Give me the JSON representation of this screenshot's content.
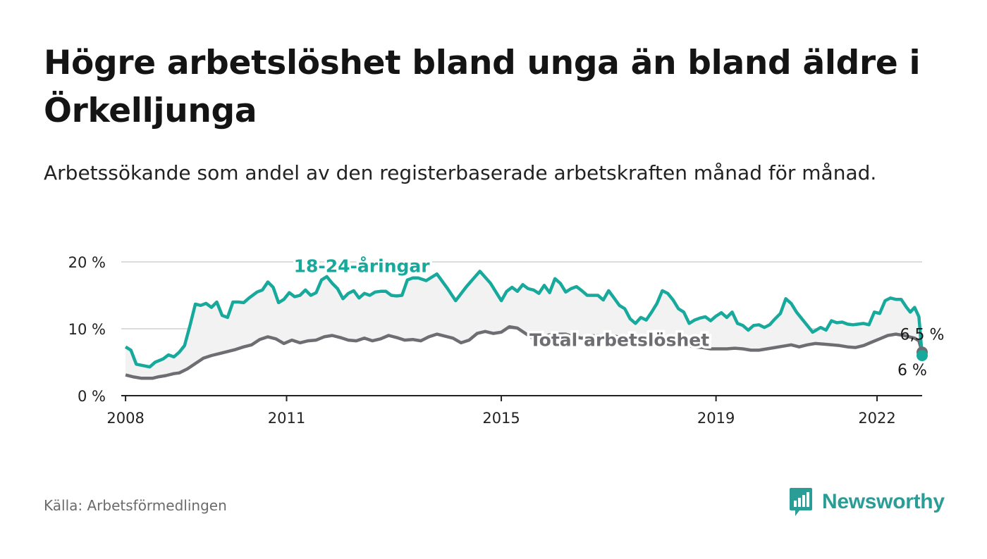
{
  "header": {
    "title": "Högre arbetslöshet bland unga än bland äldre i Örkelljunga",
    "subtitle": "Arbetssökande som andel av den registerbaserade arbetskraften månad för månad."
  },
  "footer": {
    "source": "Källa: Arbetsförmedlingen",
    "brand": "Newsworthy"
  },
  "colors": {
    "youth": "#17a99c",
    "total": "#6e6d72",
    "fill": "#f2f2f2",
    "grid": "#dcdcdc",
    "axis": "#222222",
    "brand": "#2a9d96"
  },
  "chart_data": {
    "type": "line",
    "title": "Högre arbetslöshet bland unga än bland äldre i Örkelljunga",
    "xlabel": "",
    "ylabel": "",
    "xlim": [
      2007.92,
      2022.84
    ],
    "ylim": [
      0,
      20
    ],
    "y_ticks": [
      0,
      10,
      20
    ],
    "y_tick_labels": [
      "0 %",
      "10 %",
      "20 %"
    ],
    "x_ticks": [
      2008,
      2011,
      2015,
      2019,
      2022
    ],
    "x_tick_labels": [
      "2008",
      "2011",
      "2015",
      "2019",
      "2022"
    ],
    "grid": true,
    "series": [
      {
        "name": "18-24-åringar",
        "label": "18-24-åringar",
        "end_label": "6 %",
        "points": [
          [
            2008.0,
            7.3
          ],
          [
            2008.1,
            6.8
          ],
          [
            2008.2,
            4.7
          ],
          [
            2008.45,
            4.3
          ],
          [
            2008.55,
            5.0
          ],
          [
            2008.7,
            5.5
          ],
          [
            2008.8,
            6.1
          ],
          [
            2008.9,
            5.8
          ],
          [
            2009.0,
            6.5
          ],
          [
            2009.1,
            7.5
          ],
          [
            2009.2,
            10.5
          ],
          [
            2009.3,
            13.7
          ],
          [
            2009.4,
            13.5
          ],
          [
            2009.5,
            13.8
          ],
          [
            2009.6,
            13.2
          ],
          [
            2009.7,
            14.0
          ],
          [
            2009.8,
            12.0
          ],
          [
            2009.9,
            11.7
          ],
          [
            2010.0,
            14.0
          ],
          [
            2010.1,
            14.0
          ],
          [
            2010.2,
            13.9
          ],
          [
            2010.3,
            14.6
          ],
          [
            2010.45,
            15.5
          ],
          [
            2010.55,
            15.8
          ],
          [
            2010.65,
            17.0
          ],
          [
            2010.75,
            16.2
          ],
          [
            2010.85,
            13.9
          ],
          [
            2010.95,
            14.4
          ],
          [
            2011.05,
            15.4
          ],
          [
            2011.15,
            14.8
          ],
          [
            2011.25,
            15.0
          ],
          [
            2011.35,
            15.8
          ],
          [
            2011.45,
            15.0
          ],
          [
            2011.55,
            15.4
          ],
          [
            2011.65,
            17.3
          ],
          [
            2011.75,
            17.8
          ],
          [
            2011.85,
            16.8
          ],
          [
            2011.95,
            16.0
          ],
          [
            2012.05,
            14.5
          ],
          [
            2012.15,
            15.3
          ],
          [
            2012.25,
            15.7
          ],
          [
            2012.35,
            14.6
          ],
          [
            2012.45,
            15.3
          ],
          [
            2012.55,
            15.0
          ],
          [
            2012.65,
            15.5
          ],
          [
            2012.75,
            15.6
          ],
          [
            2012.85,
            15.6
          ],
          [
            2012.95,
            15.0
          ],
          [
            2013.05,
            14.9
          ],
          [
            2013.15,
            15.0
          ],
          [
            2013.25,
            17.3
          ],
          [
            2013.35,
            17.6
          ],
          [
            2013.45,
            17.6
          ],
          [
            2013.6,
            17.2
          ],
          [
            2013.8,
            18.2
          ],
          [
            2014.0,
            16.0
          ],
          [
            2014.15,
            14.2
          ],
          [
            2014.35,
            16.3
          ],
          [
            2014.6,
            18.6
          ],
          [
            2014.8,
            16.8
          ],
          [
            2015.0,
            14.2
          ],
          [
            2015.1,
            15.6
          ],
          [
            2015.2,
            16.2
          ],
          [
            2015.3,
            15.6
          ],
          [
            2015.4,
            16.6
          ],
          [
            2015.5,
            16.0
          ],
          [
            2015.6,
            15.8
          ],
          [
            2015.7,
            15.3
          ],
          [
            2015.8,
            16.5
          ],
          [
            2015.9,
            15.4
          ],
          [
            2016.0,
            17.5
          ],
          [
            2016.1,
            16.8
          ],
          [
            2016.2,
            15.5
          ],
          [
            2016.3,
            16.0
          ],
          [
            2016.4,
            16.3
          ],
          [
            2016.5,
            15.7
          ],
          [
            2016.6,
            15.0
          ],
          [
            2016.7,
            15.0
          ],
          [
            2016.8,
            15.0
          ],
          [
            2016.9,
            14.3
          ],
          [
            2017.0,
            15.7
          ],
          [
            2017.1,
            14.6
          ],
          [
            2017.2,
            13.5
          ],
          [
            2017.3,
            13.0
          ],
          [
            2017.4,
            11.5
          ],
          [
            2017.5,
            10.8
          ],
          [
            2017.6,
            11.7
          ],
          [
            2017.7,
            11.3
          ],
          [
            2017.8,
            12.5
          ],
          [
            2017.9,
            13.8
          ],
          [
            2018.0,
            15.7
          ],
          [
            2018.1,
            15.3
          ],
          [
            2018.2,
            14.3
          ],
          [
            2018.3,
            13.0
          ],
          [
            2018.4,
            12.5
          ],
          [
            2018.5,
            10.8
          ],
          [
            2018.6,
            11.3
          ],
          [
            2018.7,
            11.6
          ],
          [
            2018.8,
            11.8
          ],
          [
            2018.9,
            11.2
          ],
          [
            2019.0,
            11.9
          ],
          [
            2019.1,
            12.4
          ],
          [
            2019.2,
            11.7
          ],
          [
            2019.3,
            12.5
          ],
          [
            2019.4,
            10.8
          ],
          [
            2019.5,
            10.5
          ],
          [
            2019.6,
            9.8
          ],
          [
            2019.7,
            10.5
          ],
          [
            2019.8,
            10.6
          ],
          [
            2019.9,
            10.2
          ],
          [
            2020.0,
            10.6
          ],
          [
            2020.1,
            11.5
          ],
          [
            2020.2,
            12.3
          ],
          [
            2020.3,
            14.5
          ],
          [
            2020.4,
            13.8
          ],
          [
            2020.5,
            12.5
          ],
          [
            2020.6,
            11.5
          ],
          [
            2020.7,
            10.5
          ],
          [
            2020.8,
            9.5
          ],
          [
            2020.95,
            10.2
          ],
          [
            2021.05,
            9.8
          ],
          [
            2021.15,
            11.2
          ],
          [
            2021.25,
            10.9
          ],
          [
            2021.35,
            11.0
          ],
          [
            2021.45,
            10.7
          ],
          [
            2021.55,
            10.6
          ],
          [
            2021.65,
            10.7
          ],
          [
            2021.75,
            10.8
          ],
          [
            2021.85,
            10.6
          ],
          [
            2021.95,
            12.5
          ],
          [
            2022.05,
            12.3
          ],
          [
            2022.15,
            14.2
          ],
          [
            2022.25,
            14.6
          ],
          [
            2022.35,
            14.4
          ],
          [
            2022.45,
            14.4
          ],
          [
            2022.55,
            13.2
          ],
          [
            2022.62,
            12.5
          ],
          [
            2022.7,
            13.2
          ],
          [
            2022.78,
            11.8
          ],
          [
            2022.84,
            6.0
          ]
        ]
      },
      {
        "name": "Total arbetslöshet",
        "label": "Total arbetslöshet",
        "end_label": "6,5 %",
        "points": [
          [
            2008.0,
            3.1
          ],
          [
            2008.15,
            2.8
          ],
          [
            2008.3,
            2.6
          ],
          [
            2008.5,
            2.6
          ],
          [
            2008.6,
            2.8
          ],
          [
            2008.75,
            3.0
          ],
          [
            2008.9,
            3.3
          ],
          [
            2009.0,
            3.4
          ],
          [
            2009.15,
            4.0
          ],
          [
            2009.3,
            4.8
          ],
          [
            2009.45,
            5.6
          ],
          [
            2009.6,
            6.0
          ],
          [
            2009.75,
            6.3
          ],
          [
            2009.9,
            6.6
          ],
          [
            2010.05,
            6.9
          ],
          [
            2010.2,
            7.3
          ],
          [
            2010.35,
            7.6
          ],
          [
            2010.5,
            8.4
          ],
          [
            2010.65,
            8.8
          ],
          [
            2010.8,
            8.5
          ],
          [
            2010.95,
            7.8
          ],
          [
            2011.1,
            8.3
          ],
          [
            2011.25,
            7.9
          ],
          [
            2011.4,
            8.2
          ],
          [
            2011.55,
            8.3
          ],
          [
            2011.7,
            8.8
          ],
          [
            2011.85,
            9.0
          ],
          [
            2012.0,
            8.7
          ],
          [
            2012.15,
            8.3
          ],
          [
            2012.3,
            8.2
          ],
          [
            2012.45,
            8.6
          ],
          [
            2012.6,
            8.2
          ],
          [
            2012.75,
            8.5
          ],
          [
            2012.9,
            9.0
          ],
          [
            2013.05,
            8.7
          ],
          [
            2013.2,
            8.3
          ],
          [
            2013.35,
            8.4
          ],
          [
            2013.5,
            8.2
          ],
          [
            2013.65,
            8.8
          ],
          [
            2013.8,
            9.2
          ],
          [
            2013.95,
            8.9
          ],
          [
            2014.1,
            8.6
          ],
          [
            2014.25,
            7.9
          ],
          [
            2014.4,
            8.3
          ],
          [
            2014.55,
            9.3
          ],
          [
            2014.7,
            9.6
          ],
          [
            2014.85,
            9.3
          ],
          [
            2015.0,
            9.5
          ],
          [
            2015.15,
            10.3
          ],
          [
            2015.3,
            10.1
          ],
          [
            2015.45,
            9.3
          ],
          [
            2015.6,
            8.5
          ],
          [
            2015.75,
            8.8
          ],
          [
            2015.9,
            9.1
          ],
          [
            2016.05,
            9.2
          ],
          [
            2016.2,
            9.2
          ],
          [
            2016.35,
            8.8
          ],
          [
            2016.5,
            8.6
          ],
          [
            2016.65,
            8.9
          ],
          [
            2016.8,
            9.0
          ],
          [
            2016.95,
            8.8
          ],
          [
            2017.1,
            8.9
          ],
          [
            2017.25,
            8.7
          ],
          [
            2017.4,
            8.5
          ],
          [
            2017.55,
            8.4
          ],
          [
            2017.7,
            8.2
          ],
          [
            2017.85,
            8.0
          ],
          [
            2018.0,
            7.9
          ],
          [
            2018.15,
            7.8
          ],
          [
            2018.3,
            7.6
          ],
          [
            2018.45,
            7.5
          ],
          [
            2018.6,
            7.3
          ],
          [
            2018.75,
            7.2
          ],
          [
            2018.9,
            7.0
          ],
          [
            2019.05,
            7.0
          ],
          [
            2019.2,
            7.0
          ],
          [
            2019.35,
            7.1
          ],
          [
            2019.5,
            7.0
          ],
          [
            2019.65,
            6.8
          ],
          [
            2019.8,
            6.8
          ],
          [
            2019.95,
            7.0
          ],
          [
            2020.1,
            7.2
          ],
          [
            2020.25,
            7.4
          ],
          [
            2020.4,
            7.6
          ],
          [
            2020.55,
            7.3
          ],
          [
            2020.7,
            7.6
          ],
          [
            2020.85,
            7.8
          ],
          [
            2021.0,
            7.7
          ],
          [
            2021.15,
            7.6
          ],
          [
            2021.3,
            7.5
          ],
          [
            2021.45,
            7.3
          ],
          [
            2021.6,
            7.2
          ],
          [
            2021.75,
            7.5
          ],
          [
            2021.9,
            8.0
          ],
          [
            2022.05,
            8.5
          ],
          [
            2022.2,
            9.0
          ],
          [
            2022.35,
            9.2
          ],
          [
            2022.5,
            9.0
          ],
          [
            2022.6,
            8.8
          ],
          [
            2022.7,
            8.6
          ],
          [
            2022.78,
            8.2
          ],
          [
            2022.84,
            6.5
          ]
        ]
      }
    ]
  }
}
